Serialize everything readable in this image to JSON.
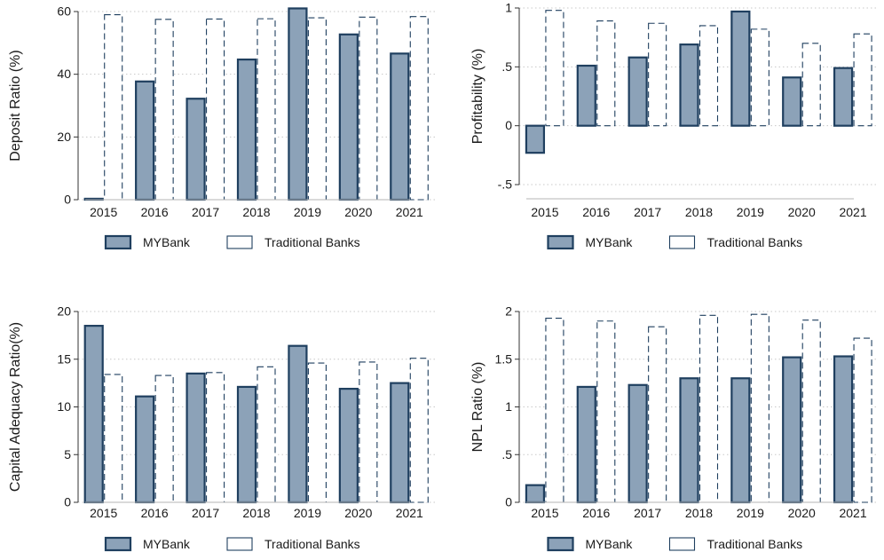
{
  "colors": {
    "mybank_fill": "#8ca2b8",
    "mybank_stroke": "#1f3f5f",
    "traditional_fill": "#ffffff",
    "traditional_stroke": "#1f3f5f",
    "grid": "#c8c8c8",
    "axis": "#333333"
  },
  "legend": {
    "mybank": "MYBank",
    "traditional": "Traditional Banks"
  },
  "chart_data": [
    {
      "type": "bar",
      "ylabel": "Deposit Ratio (%)",
      "ylim": [
        0,
        60
      ],
      "yticks": [
        0,
        20,
        40,
        60
      ],
      "ytick_labels": [
        "0",
        "20",
        "40",
        "60"
      ],
      "categories": [
        "2015",
        "2016",
        "2017",
        "2018",
        "2019",
        "2020",
        "2021"
      ],
      "series": [
        {
          "name": "MYBank",
          "values": [
            0.3,
            37.7,
            32.2,
            44.7,
            61.0,
            52.7,
            46.6
          ]
        },
        {
          "name": "Traditional Banks",
          "values": [
            59.0,
            57.5,
            57.6,
            57.7,
            58.0,
            58.2,
            58.4
          ]
        }
      ],
      "grid": true,
      "legend_position": "bottom"
    },
    {
      "type": "bar",
      "ylabel": "Profitability (%)",
      "ylim": [
        -0.5,
        1
      ],
      "yticks": [
        -0.5,
        0,
        0.5,
        1
      ],
      "ytick_labels": [
        "-.5",
        "0",
        ".5",
        "1"
      ],
      "categories": [
        "2015",
        "2016",
        "2017",
        "2018",
        "2019",
        "2020",
        "2021"
      ],
      "series": [
        {
          "name": "MYBank",
          "values": [
            -0.23,
            0.51,
            0.58,
            0.69,
            0.97,
            0.41,
            0.49
          ]
        },
        {
          "name": "Traditional Banks",
          "values": [
            0.98,
            0.89,
            0.87,
            0.85,
            0.82,
            0.7,
            0.78
          ]
        }
      ],
      "grid": true,
      "legend_position": "bottom"
    },
    {
      "type": "bar",
      "ylabel": "Capital Adequacy Ratio(%)",
      "ylim": [
        0,
        20
      ],
      "yticks": [
        0,
        5,
        10,
        15,
        20
      ],
      "ytick_labels": [
        "0",
        "5",
        "10",
        "15",
        "20"
      ],
      "categories": [
        "2015",
        "2016",
        "2017",
        "2018",
        "2019",
        "2020",
        "2021"
      ],
      "series": [
        {
          "name": "MYBank",
          "values": [
            18.5,
            11.1,
            13.5,
            12.1,
            16.4,
            11.9,
            12.5
          ]
        },
        {
          "name": "Traditional Banks",
          "values": [
            13.4,
            13.3,
            13.6,
            14.2,
            14.6,
            14.7,
            15.1
          ]
        }
      ],
      "grid": true,
      "legend_position": "bottom"
    },
    {
      "type": "bar",
      "ylabel": "NPL Ratio (%)",
      "ylim": [
        0,
        2
      ],
      "yticks": [
        0,
        0.5,
        1,
        1.5,
        2
      ],
      "ytick_labels": [
        "0",
        ".5",
        "1",
        "1.5",
        "2"
      ],
      "categories": [
        "2015",
        "2016",
        "2017",
        "2018",
        "2019",
        "2020",
        "2021"
      ],
      "series": [
        {
          "name": "MYBank",
          "values": [
            0.18,
            1.21,
            1.23,
            1.3,
            1.3,
            1.52,
            1.53
          ]
        },
        {
          "name": "Traditional Banks",
          "values": [
            1.93,
            1.9,
            1.84,
            1.96,
            1.97,
            1.91,
            1.72
          ]
        }
      ],
      "grid": true,
      "legend_position": "bottom"
    }
  ]
}
